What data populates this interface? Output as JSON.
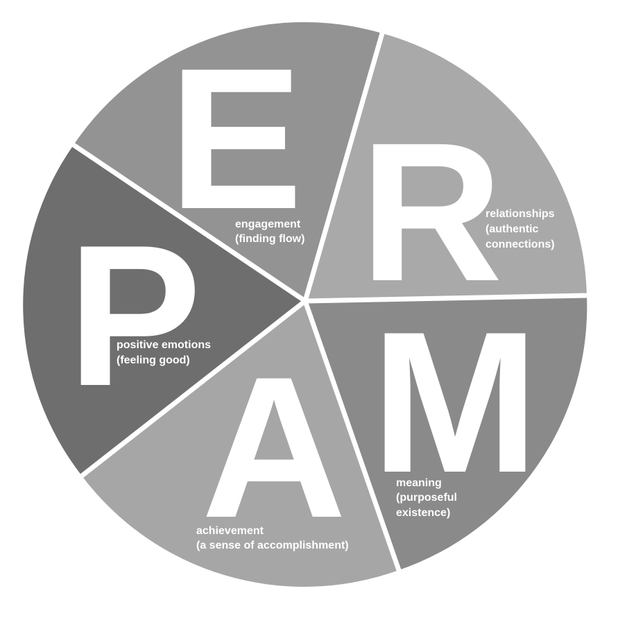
{
  "segments": [
    {
      "id": "engagement",
      "letter": "E",
      "label_line1": "engagement",
      "label_line2": "(finding flow)",
      "fill": "#939393"
    },
    {
      "id": "relationships",
      "letter": "R",
      "label_line1": "relationships",
      "label_line2": "(authentic",
      "label_line3": "connections)",
      "fill": "#a9a9a9"
    },
    {
      "id": "meaning",
      "letter": "M",
      "label_line1": "meaning",
      "label_line2": "(purposeful",
      "label_line3": "existence)",
      "fill": "#8a8a8a"
    },
    {
      "id": "achievement",
      "letter": "A",
      "label_line1": "achievement",
      "label_line2": "(a sense of accomplishment)",
      "fill": "#a6a6a6"
    },
    {
      "id": "positive-emotions",
      "letter": "P",
      "label_line1": "positive emotions",
      "label_line2": "(feeling good)",
      "fill": "#6e6e6e"
    }
  ]
}
